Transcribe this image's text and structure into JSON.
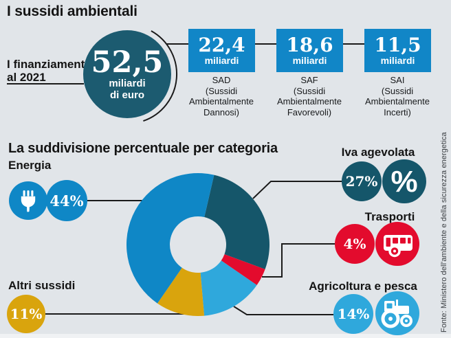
{
  "header": {
    "title": "I sussidi ambientali"
  },
  "financing": {
    "label_line1": "I finanziamenti",
    "label_line2": "al 2021",
    "total": {
      "value": "52,5",
      "unit_line1": "miliardi",
      "unit_line2": "di euro"
    },
    "boxes": [
      {
        "value": "22,4",
        "unit": "miliardi",
        "name": "SAD",
        "desc1": "(Sussidi",
        "desc2": "Ambientalmente",
        "desc3": "Dannosi)"
      },
      {
        "value": "18,6",
        "unit": "miliardi",
        "name": "SAF",
        "desc1": "(Sussidi",
        "desc2": "Ambientalmente",
        "desc3": "Favorevoli)"
      },
      {
        "value": "11,5",
        "unit": "miliardi",
        "name": "SAI",
        "desc1": "(Sussidi",
        "desc2": "Ambientalmente",
        "desc3": "Incerti)"
      }
    ]
  },
  "breakdown": {
    "title": "La suddivisione percentuale per categoria",
    "labels": {
      "energia": "Energia",
      "iva": "Iva agevolata",
      "trasporti": "Trasporti",
      "agricoltura": "Agricoltura e pesca",
      "altri": "Altri sussidi"
    },
    "percents": {
      "energia": "44%",
      "iva": "27%",
      "trasporti": "4%",
      "agricoltura": "14%",
      "altri": "11%"
    },
    "icons": {
      "energia": "plug-icon",
      "iva": "percent-icon",
      "trasporti": "bus-icon",
      "agricoltura": "tractor-icon"
    }
  },
  "source_note": "Fonte: Ministero dell'ambiente e della sicurezza energetica",
  "chart_data": {
    "type": "pie",
    "variant": "donut",
    "title": "La suddivisione percentuale per categoria",
    "unit": "percent",
    "start_angle_deg": 13,
    "outer_radius": 104,
    "inner_radius": 41,
    "slices": [
      {
        "label": "Iva agevolata",
        "value": 27,
        "color": "#15566A"
      },
      {
        "label": "Trasporti",
        "value": 4,
        "color": "#E30B2D"
      },
      {
        "label": "Agricoltura e pesca",
        "value": 14,
        "color": "#2FA8DC"
      },
      {
        "label": "Altri sussidi",
        "value": 11,
        "color": "#D9A40D"
      },
      {
        "label": "Energia",
        "value": 44,
        "color": "#0F87C6"
      }
    ],
    "colors": {
      "primary_blue": "#0F87C6",
      "box_blue": "#1186C7",
      "dark_teal": "#15566A",
      "total_circle_teal": "#1C5B70",
      "light_blue": "#2FA8DC",
      "red": "#E30B2D",
      "gold": "#D9A40D",
      "background": "#e1e5e9",
      "line": "#1a1a1a"
    }
  }
}
